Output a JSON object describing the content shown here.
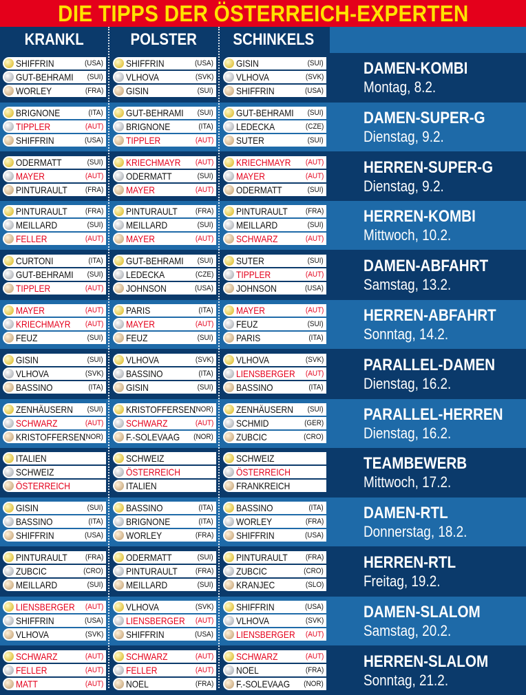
{
  "title": "DIE TIPPS DER ÖSTERREICH-EXPERTEN",
  "experts": [
    "KRANKL",
    "POLSTER",
    "SCHINKELS"
  ],
  "colors": {
    "title_bg": "#e4001b",
    "title_text": "#ffe200",
    "dark_blue": "#0b3a6b",
    "light_blue": "#1e6aa8",
    "aut_red": "#e4001b"
  },
  "events": [
    {
      "name": "DAMEN-KOMBI",
      "date": "Montag, 8.2.",
      "picks": [
        [
          [
            "SHIFFRIN",
            "(USA)"
          ],
          [
            "GUT-BEHRAMI",
            "(SUI)"
          ],
          [
            "WORLEY",
            "(FRA)"
          ]
        ],
        [
          [
            "SHIFFRIN",
            "(USA)"
          ],
          [
            "VLHOVA",
            "(SVK)"
          ],
          [
            "GISIN",
            "(SUI)"
          ]
        ],
        [
          [
            "GISIN",
            "(SUI)"
          ],
          [
            "VLHOVA",
            "(SVK)"
          ],
          [
            "SHIFFRIN",
            "(USA)"
          ]
        ]
      ]
    },
    {
      "name": "DAMEN-SUPER-G",
      "date": "Dienstag, 9.2.",
      "picks": [
        [
          [
            "BRIGNONE",
            "(ITA)"
          ],
          [
            "TIPPLER",
            "(AUT)"
          ],
          [
            "SHIFFRIN",
            "(USA)"
          ]
        ],
        [
          [
            "GUT-BEHRAMI",
            "(SUI)"
          ],
          [
            "BRIGNONE",
            "(ITA)"
          ],
          [
            "TIPPLER",
            "(AUT)"
          ]
        ],
        [
          [
            "GUT-BEHRAMI",
            "(SUI)"
          ],
          [
            "LEDECKA",
            "(CZE)"
          ],
          [
            "SUTER",
            "(SUI)"
          ]
        ]
      ]
    },
    {
      "name": "HERREN-SUPER-G",
      "date": "Dienstag, 9.2.",
      "picks": [
        [
          [
            "ODERMATT",
            "(SUI)"
          ],
          [
            "MAYER",
            "(AUT)"
          ],
          [
            "PINTURAULT",
            "(FRA)"
          ]
        ],
        [
          [
            "KRIECHMAYR",
            "(AUT)"
          ],
          [
            "ODERMATT",
            "(SUI)"
          ],
          [
            "MAYER",
            "(AUT)"
          ]
        ],
        [
          [
            "KRIECHMAYR",
            "(AUT)"
          ],
          [
            "MAYER",
            "(AUT)"
          ],
          [
            "ODERMATT",
            "(SUI)"
          ]
        ]
      ]
    },
    {
      "name": "HERREN-KOMBI",
      "date": "Mittwoch, 10.2.",
      "picks": [
        [
          [
            "PINTURAULT",
            "(FRA)"
          ],
          [
            "MEILLARD",
            "(SUI)"
          ],
          [
            "FELLER",
            "(AUT)"
          ]
        ],
        [
          [
            "PINTURAULT",
            "(FRA)"
          ],
          [
            "MEILLARD",
            "(SUI)"
          ],
          [
            "MAYER",
            "(AUT)"
          ]
        ],
        [
          [
            "PINTURAULT",
            "(FRA)"
          ],
          [
            "MEILLARD",
            "(SUI)"
          ],
          [
            "SCHWARZ",
            "(AUT)"
          ]
        ]
      ]
    },
    {
      "name": "DAMEN-ABFAHRT",
      "date": "Samstag, 13.2.",
      "picks": [
        [
          [
            "CURTONI",
            "(ITA)"
          ],
          [
            "GUT-BEHRAMI",
            "(SUI)"
          ],
          [
            "TIPPLER",
            "(AUT)"
          ]
        ],
        [
          [
            "GUT-BEHRAMI",
            "(SUI)"
          ],
          [
            "LEDECKA",
            "(CZE)"
          ],
          [
            "JOHNSON",
            "(USA)"
          ]
        ],
        [
          [
            "SUTER",
            "(SUI)"
          ],
          [
            "TIPPLER",
            "(AUT)"
          ],
          [
            "JOHNSON",
            "(USA)"
          ]
        ]
      ]
    },
    {
      "name": "HERREN-ABFAHRT",
      "date": "Sonntag, 14.2.",
      "picks": [
        [
          [
            "MAYER",
            "(AUT)"
          ],
          [
            "KRIECHMAYR",
            "(AUT)"
          ],
          [
            "FEUZ",
            "(SUI)"
          ]
        ],
        [
          [
            "PARIS",
            "(ITA)"
          ],
          [
            "MAYER",
            "(AUT)"
          ],
          [
            "FEUZ",
            "(SUI)"
          ]
        ],
        [
          [
            "MAYER",
            "(AUT)"
          ],
          [
            "FEUZ",
            "(SUI)"
          ],
          [
            "PARIS",
            "(ITA)"
          ]
        ]
      ]
    },
    {
      "name": "PARALLEL-DAMEN",
      "date": "Dienstag, 16.2.",
      "picks": [
        [
          [
            "GISIN",
            "(SUI)"
          ],
          [
            "VLHOVA",
            "(SVK)"
          ],
          [
            "BASSINO",
            "(ITA)"
          ]
        ],
        [
          [
            "VLHOVA",
            "(SVK)"
          ],
          [
            "BASSINO",
            "(ITA)"
          ],
          [
            "GISIN",
            "(SUI)"
          ]
        ],
        [
          [
            "VLHOVA",
            "(SVK)"
          ],
          [
            "LIENSBERGER",
            "(AUT)"
          ],
          [
            "BASSINO",
            "(ITA)"
          ]
        ]
      ]
    },
    {
      "name": "PARALLEL-HERREN",
      "date": "Dienstag, 16.2.",
      "picks": [
        [
          [
            "ZENHÄUSERN",
            "(SUI)"
          ],
          [
            "SCHWARZ",
            "(AUT)"
          ],
          [
            "KRISTOFFERSEN",
            "(NOR)"
          ]
        ],
        [
          [
            "KRISTOFFERSEN",
            "(NOR)"
          ],
          [
            "SCHWARZ",
            "(AUT)"
          ],
          [
            "F.-SOLEVAAG",
            "(NOR)"
          ]
        ],
        [
          [
            "ZENHÄUSERN",
            "(SUI)"
          ],
          [
            "SCHMID",
            "(GER)"
          ],
          [
            "ZUBCIC",
            "(CRO)"
          ]
        ]
      ]
    },
    {
      "name": "TEAMBEWERB",
      "date": "Mittwoch, 17.2.",
      "picks": [
        [
          [
            "ITALIEN",
            ""
          ],
          [
            "SCHWEIZ",
            ""
          ],
          [
            "ÖSTERREICH",
            ""
          ]
        ],
        [
          [
            "SCHWEIZ",
            ""
          ],
          [
            "ÖSTERREICH",
            ""
          ],
          [
            "ITALIEN",
            ""
          ]
        ],
        [
          [
            "SCHWEIZ",
            ""
          ],
          [
            "ÖSTERREICH",
            ""
          ],
          [
            "FRANKREICH",
            ""
          ]
        ]
      ]
    },
    {
      "name": "DAMEN-RTL",
      "date": "Donnerstag, 18.2.",
      "picks": [
        [
          [
            "GISIN",
            "(SUI)"
          ],
          [
            "BASSINO",
            "(ITA)"
          ],
          [
            "SHIFFRIN",
            "(USA)"
          ]
        ],
        [
          [
            "BASSINO",
            "(ITA)"
          ],
          [
            "BRIGNONE",
            "(ITA)"
          ],
          [
            "WORLEY",
            "(FRA)"
          ]
        ],
        [
          [
            "BASSINO",
            "(ITA)"
          ],
          [
            "WORLEY",
            "(FRA)"
          ],
          [
            "SHIFFRIN",
            "(USA)"
          ]
        ]
      ]
    },
    {
      "name": "HERREN-RTL",
      "date": "Freitag, 19.2.",
      "picks": [
        [
          [
            "PINTURAULT",
            "(FRA)"
          ],
          [
            "ZUBCIC",
            "(CRO)"
          ],
          [
            "MEILLARD",
            "(SUI)"
          ]
        ],
        [
          [
            "ODERMATT",
            "(SUI)"
          ],
          [
            "PINTURAULT",
            "(FRA)"
          ],
          [
            "MEILLARD",
            "(SUI)"
          ]
        ],
        [
          [
            "PINTURAULT",
            "(FRA)"
          ],
          [
            "ZUBCIC",
            "(CRO)"
          ],
          [
            "KRANJEC",
            "(SLO)"
          ]
        ]
      ]
    },
    {
      "name": "DAMEN-SLALOM",
      "date": "Samstag, 20.2.",
      "picks": [
        [
          [
            "LIENSBERGER",
            "(AUT)"
          ],
          [
            "SHIFFRIN",
            "(USA)"
          ],
          [
            "VLHOVA",
            "(SVK)"
          ]
        ],
        [
          [
            "VLHOVA",
            "(SVK)"
          ],
          [
            "LIENSBERGER",
            "(AUT)"
          ],
          [
            "SHIFFRIN",
            "(USA)"
          ]
        ],
        [
          [
            "SHIFFRIN",
            "(USA)"
          ],
          [
            "VLHOVA",
            "(SVK)"
          ],
          [
            "LIENSBERGER",
            "(AUT)"
          ]
        ]
      ]
    },
    {
      "name": "HERREN-SLALOM",
      "date": "Sonntag, 21.2.",
      "picks": [
        [
          [
            "SCHWARZ",
            "(AUT)"
          ],
          [
            "FELLER",
            "(AUT)"
          ],
          [
            "MATT",
            "(AUT)"
          ]
        ],
        [
          [
            "SCHWARZ",
            "(AUT)"
          ],
          [
            "FELLER",
            "(AUT)"
          ],
          [
            "NOEL",
            "(FRA)"
          ]
        ],
        [
          [
            "SCHWARZ",
            "(AUT)"
          ],
          [
            "NOEL",
            "(FRA)"
          ],
          [
            "F.-SOLEVAAG",
            "(NOR)"
          ]
        ]
      ]
    }
  ]
}
